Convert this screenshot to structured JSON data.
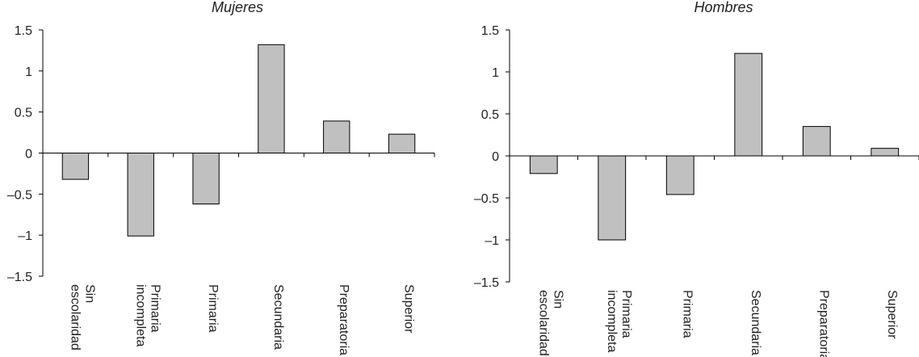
{
  "chart_data": [
    {
      "type": "bar",
      "title": "Mujeres",
      "categories": [
        [
          "Sin",
          "escolaridad"
        ],
        [
          "Primaria",
          "incompleta"
        ],
        [
          "Primaria"
        ],
        [
          "Secundaria"
        ],
        [
          "Preparatoria"
        ],
        [
          "Superior"
        ]
      ],
      "values": [
        -0.32,
        -1.01,
        -0.62,
        1.32,
        0.39,
        0.23
      ],
      "yticks": [
        "1.5",
        "1",
        "0.5",
        "0",
        "–0.5",
        "–1",
        "–1.5"
      ],
      "ytick_values": [
        1.5,
        1,
        0.5,
        0,
        -0.5,
        -1,
        -1.5
      ],
      "ylim": [
        -1.5,
        1.5
      ],
      "xlabel": "",
      "ylabel": "",
      "bar_color": "#c0c0c0"
    },
    {
      "type": "bar",
      "title": "Hombres",
      "categories": [
        [
          "Sin",
          "escolaridad"
        ],
        [
          "Primaria",
          "incompleta"
        ],
        [
          "Primaria"
        ],
        [
          "Secundaria"
        ],
        [
          "Preparatoria"
        ],
        [
          "Superior"
        ]
      ],
      "values": [
        -0.21,
        -1.0,
        -0.46,
        1.22,
        0.35,
        0.09
      ],
      "yticks": [
        "1.5",
        "1",
        "0.5",
        "0",
        "–0.5",
        "–1",
        "–1.5"
      ],
      "ytick_values": [
        1.5,
        1,
        0.5,
        0,
        -0.5,
        -1,
        -1.5
      ],
      "ylim": [
        -1.5,
        1.5
      ],
      "xlabel": "",
      "ylabel": "",
      "bar_color": "#c0c0c0"
    }
  ]
}
